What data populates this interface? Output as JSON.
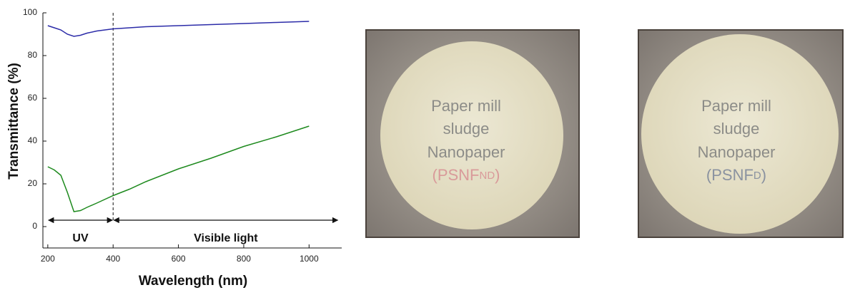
{
  "chart_data": {
    "type": "line",
    "xlabel": "Wavelength (nm)",
    "ylabel": "Transmittance (%)",
    "x": [
      200,
      220,
      240,
      260,
      280,
      300,
      320,
      350,
      400,
      450,
      500,
      600,
      700,
      800,
      900,
      1000
    ],
    "series": [
      {
        "color": "#2b2ba8",
        "values": [
          94,
          93,
          92,
          90,
          89,
          89.5,
          90.5,
          91.5,
          92.5,
          93,
          93.5,
          94,
          94.5,
          95,
          95.5,
          96
        ]
      },
      {
        "color": "#1e8a1e",
        "values": [
          28,
          26.5,
          24,
          16,
          7,
          7.5,
          9,
          11,
          14.5,
          17.5,
          21,
          27,
          32,
          37.5,
          42,
          47
        ]
      }
    ],
    "xlim": [
      185,
      1100
    ],
    "ylim": [
      -10,
      100
    ],
    "xticks": [
      200,
      400,
      600,
      800,
      1000
    ],
    "yticks": [
      0,
      20,
      40,
      60,
      80,
      100
    ],
    "vline": 400,
    "annotations": [
      {
        "text": "UV",
        "x": [
          200,
          400
        ],
        "y": 3
      },
      {
        "text": "Visible light",
        "x": [
          400,
          1090
        ],
        "y": 3
      }
    ]
  },
  "photos": [
    {
      "lines": [
        "Paper mill",
        "sludge",
        "Nanopaper"
      ],
      "code": [
        "(PSNF",
        "ND",
        ")"
      ]
    },
    {
      "lines": [
        "Paper mill",
        "sludge",
        "Nanopaper"
      ],
      "code": [
        "(PSNF",
        "D",
        ")"
      ]
    }
  ]
}
